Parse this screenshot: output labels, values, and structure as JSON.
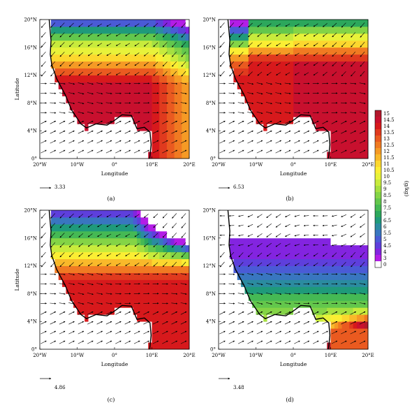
{
  "chart_data": {
    "type": "heatmap",
    "panels": [
      {
        "label": "(a)",
        "ref_vector": "3.33",
        "field": "a",
        "show_ylabel": true
      },
      {
        "label": "(b)",
        "ref_vector": "6.53",
        "field": "b",
        "show_ylabel": false
      },
      {
        "label": "(c)",
        "ref_vector": "4.86",
        "field": "c",
        "show_ylabel": true
      },
      {
        "label": "(d)",
        "ref_vector": "3.48",
        "field": "d",
        "show_ylabel": false
      }
    ],
    "xlabel": "Longitude",
    "ylabel": "Latitude",
    "xticks": [
      "20°W",
      "10°W",
      "0°",
      "10°E",
      "20°E"
    ],
    "yticks": [
      "0°",
      "4°N",
      "8°N",
      "12°N",
      "16°N",
      "20°N"
    ],
    "xlim": [
      -20,
      20
    ],
    "ylim": [
      0,
      20
    ],
    "colorbar": {
      "unit": "(g/kg)",
      "ticks": [
        "15",
        "14.5",
        "14",
        "13.5",
        "13",
        "12.5",
        "12",
        "11.5",
        "11",
        "10.5",
        "10",
        "9.5",
        "9",
        "8.5",
        "8",
        "7.5",
        "7",
        "6.5",
        "6",
        "5.5",
        "5",
        "4.5",
        "4",
        "3",
        "0"
      ],
      "colors": [
        "#b2182b",
        "#c8102e",
        "#d7191c",
        "#e03a1e",
        "#ea5a20",
        "#f07a22",
        "#f59a25",
        "#f9b92a",
        "#fcd72e",
        "#fbee33",
        "#e8f23a",
        "#c8eb3c",
        "#a6e040",
        "#84d446",
        "#63c74c",
        "#45b954",
        "#2ca75c",
        "#1f9a7a",
        "#2b8ba0",
        "#3976c0",
        "#4a5bd6",
        "#5e3fdc",
        "#8324e0",
        "#b31de6",
        "#ffffff"
      ]
    }
  }
}
